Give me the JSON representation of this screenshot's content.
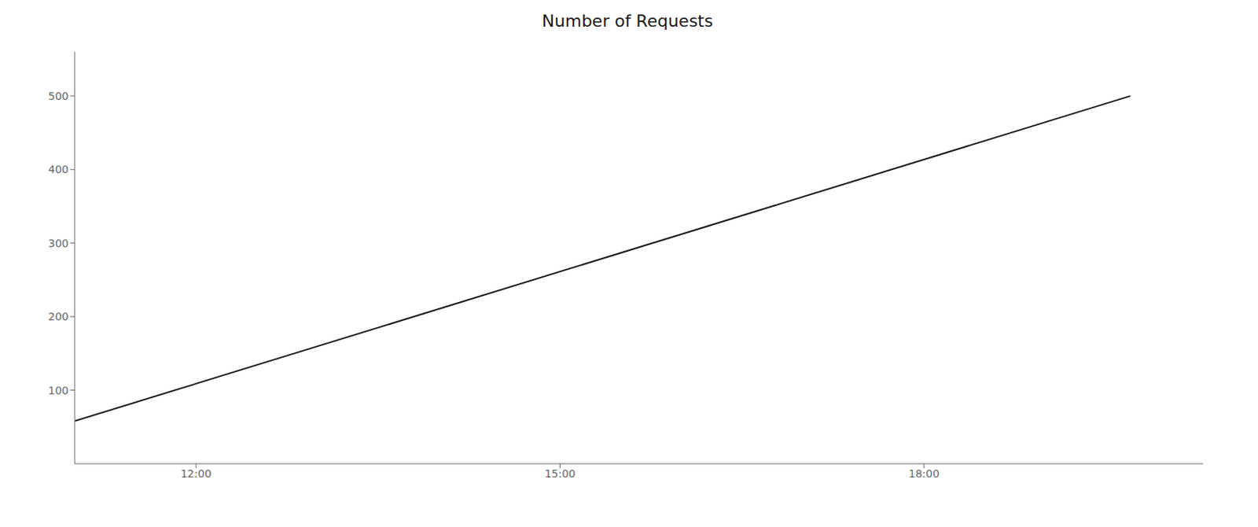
{
  "chart_data": {
    "type": "line",
    "title": "Number of Requests",
    "x": [
      11.0,
      19.7
    ],
    "values": [
      58,
      500
    ],
    "color": "#1a1a1a",
    "xlim": [
      11,
      20.3
    ],
    "xticks": [
      {
        "value": 12,
        "label": "12:00"
      },
      {
        "value": 15,
        "label": "15:00"
      },
      {
        "value": 18,
        "label": "18:00"
      }
    ],
    "ylim": [
      0,
      560
    ],
    "yticks": [
      100,
      200,
      300,
      400,
      500
    ],
    "grid": false
  }
}
